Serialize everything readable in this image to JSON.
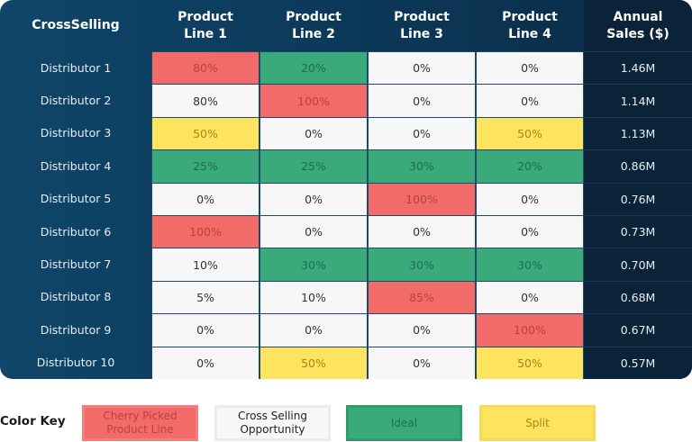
{
  "colors": {
    "cherry": "#f26b68",
    "cross": "#f7f7f7",
    "ideal": "#3aaa7a",
    "split": "#fde35e",
    "header_bg": "#0d3d60",
    "sales_bg": "#0a2338"
  },
  "chart_data": {
    "type": "table",
    "headers": [
      "CrossSelling",
      "Product\nLine 1",
      "Product\nLine 2",
      "Product\nLine 3",
      "Product\nLine 4",
      "Annual\nSales ($)"
    ],
    "rows": [
      {
        "label": "Distributor 1",
        "values": [
          "80%",
          "20%",
          "0%",
          "0%"
        ],
        "status": [
          "cherry",
          "ideal",
          "cross",
          "cross"
        ],
        "sales": "1.46M"
      },
      {
        "label": "Distributor 2",
        "values": [
          "80%",
          "100%",
          "0%",
          "0%"
        ],
        "status": [
          "cross",
          "cherry",
          "cross",
          "cross"
        ],
        "sales": "1.14M"
      },
      {
        "label": "Distributor 3",
        "values": [
          "50%",
          "0%",
          "0%",
          "50%"
        ],
        "status": [
          "split",
          "cross",
          "cross",
          "split"
        ],
        "sales": "1.13M"
      },
      {
        "label": "Distributor 4",
        "values": [
          "25%",
          "25%",
          "30%",
          "20%"
        ],
        "status": [
          "ideal",
          "ideal",
          "ideal",
          "ideal"
        ],
        "sales": "0.86M"
      },
      {
        "label": "Distributor 5",
        "values": [
          "0%",
          "0%",
          "100%",
          "0%"
        ],
        "status": [
          "cross",
          "cross",
          "cherry",
          "cross"
        ],
        "sales": "0.76M"
      },
      {
        "label": "Distributor 6",
        "values": [
          "100%",
          "0%",
          "0%",
          "0%"
        ],
        "status": [
          "cherry",
          "cross",
          "cross",
          "cross"
        ],
        "sales": "0.73M"
      },
      {
        "label": "Distributor 7",
        "values": [
          "10%",
          "30%",
          "30%",
          "30%"
        ],
        "status": [
          "cross",
          "ideal",
          "ideal",
          "ideal"
        ],
        "sales": "0.70M"
      },
      {
        "label": "Distributor 8",
        "values": [
          "5%",
          "10%",
          "85%",
          "0%"
        ],
        "status": [
          "cross",
          "cross",
          "cherry",
          "cross"
        ],
        "sales": "0.68M"
      },
      {
        "label": "Distributor 9",
        "values": [
          "0%",
          "0%",
          "0%",
          "100%"
        ],
        "status": [
          "cross",
          "cross",
          "cross",
          "cherry"
        ],
        "sales": "0.67M"
      },
      {
        "label": "Distributor 10",
        "values": [
          "0%",
          "50%",
          "0%",
          "50%"
        ],
        "status": [
          "cross",
          "split",
          "cross",
          "split"
        ],
        "sales": "0.57M"
      }
    ]
  },
  "key": {
    "title": "Color Key",
    "items": [
      {
        "id": "cherry",
        "label": "Cherry Picked\nProduct Line"
      },
      {
        "id": "cross",
        "label": "Cross Selling\nOpportunity"
      },
      {
        "id": "ideal",
        "label": "Ideal"
      },
      {
        "id": "split",
        "label": "Split"
      }
    ]
  }
}
